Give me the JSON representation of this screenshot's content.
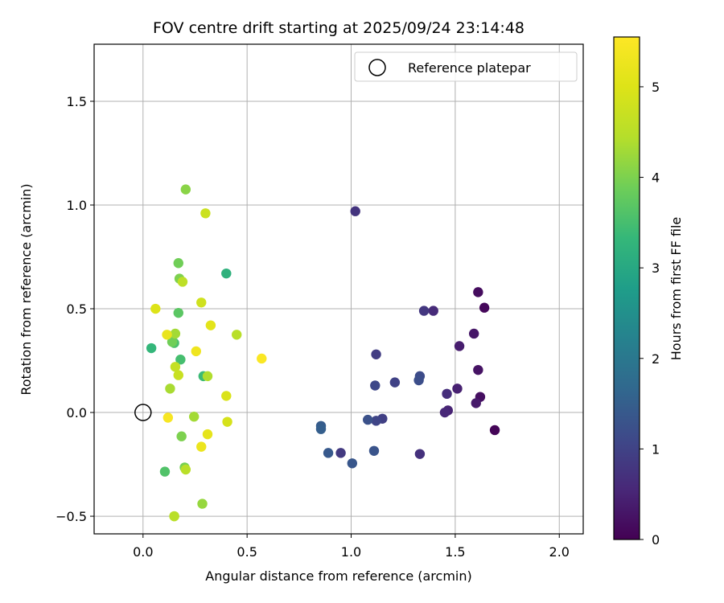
{
  "chart_data": {
    "type": "scatter",
    "title": "FOV centre drift starting at 2025/09/24 23:14:48",
    "xlabel": "Angular distance from reference (arcmin)",
    "ylabel": "Rotation from reference (arcmin)",
    "xlim": [
      -0.235,
      2.115
    ],
    "ylim": [
      -0.585,
      1.775
    ],
    "xticks": [
      0.0,
      0.5,
      1.0,
      1.5,
      2.0
    ],
    "xtick_labels": [
      "0.0",
      "0.5",
      "1.0",
      "1.5",
      "2.0"
    ],
    "yticks": [
      -0.5,
      0.0,
      0.5,
      1.0,
      1.5
    ],
    "ytick_labels": [
      "−0.5",
      "0.0",
      "0.5",
      "1.0",
      "1.5"
    ],
    "grid": true,
    "legend": {
      "position": "top-right",
      "entries": [
        "Reference platepar"
      ]
    },
    "reference_point": {
      "x": 0.0,
      "y": 0.0,
      "label": "Reference platepar"
    },
    "colorbar": {
      "label": "Hours from first FF file",
      "range": [
        0,
        5.55
      ],
      "colormap": "viridis",
      "ticks": [
        0,
        1,
        2,
        3,
        4,
        5
      ],
      "tick_labels": [
        "0",
        "1",
        "2",
        "3",
        "4",
        "5"
      ]
    },
    "points": [
      {
        "x": 1.69,
        "y": -0.085,
        "c": 0.05
      },
      {
        "x": 1.64,
        "y": 0.505,
        "c": 0.1
      },
      {
        "x": 1.61,
        "y": 0.58,
        "c": 0.15
      },
      {
        "x": 1.62,
        "y": 0.075,
        "c": 0.2
      },
      {
        "x": 1.61,
        "y": 0.205,
        "c": 0.25
      },
      {
        "x": 1.59,
        "y": 0.38,
        "c": 0.3
      },
      {
        "x": 1.6,
        "y": 0.045,
        "c": 0.35
      },
      {
        "x": 1.52,
        "y": 0.32,
        "c": 0.4
      },
      {
        "x": 1.51,
        "y": 0.115,
        "c": 0.45
      },
      {
        "x": 1.465,
        "y": 0.01,
        "c": 0.5
      },
      {
        "x": 1.45,
        "y": 0.0,
        "c": 0.55
      },
      {
        "x": 1.395,
        "y": 0.49,
        "c": 0.6
      },
      {
        "x": 1.46,
        "y": 0.09,
        "c": 0.65
      },
      {
        "x": 1.33,
        "y": -0.2,
        "c": 0.7
      },
      {
        "x": 1.02,
        "y": 0.97,
        "c": 0.75
      },
      {
        "x": 1.35,
        "y": 0.49,
        "c": 0.8
      },
      {
        "x": 0.95,
        "y": -0.195,
        "c": 0.85
      },
      {
        "x": 1.12,
        "y": 0.28,
        "c": 0.9
      },
      {
        "x": 1.15,
        "y": -0.03,
        "c": 0.95
      },
      {
        "x": 1.21,
        "y": 0.145,
        "c": 1.0
      },
      {
        "x": 1.12,
        "y": -0.04,
        "c": 1.05
      },
      {
        "x": 1.115,
        "y": 0.13,
        "c": 1.1
      },
      {
        "x": 1.33,
        "y": 0.175,
        "c": 1.15
      },
      {
        "x": 1.325,
        "y": 0.155,
        "c": 1.2
      },
      {
        "x": 1.08,
        "y": -0.035,
        "c": 1.25
      },
      {
        "x": 1.11,
        "y": -0.185,
        "c": 1.3
      },
      {
        "x": 1.005,
        "y": -0.245,
        "c": 1.35
      },
      {
        "x": 0.89,
        "y": -0.195,
        "c": 1.4
      },
      {
        "x": 0.855,
        "y": -0.065,
        "c": 1.45
      },
      {
        "x": 0.855,
        "y": -0.08,
        "c": 1.5
      },
      {
        "x": 0.4,
        "y": 0.67,
        "c": 3.2
      },
      {
        "x": 0.04,
        "y": 0.31,
        "c": 3.3
      },
      {
        "x": 0.29,
        "y": 0.175,
        "c": 3.4
      },
      {
        "x": 0.18,
        "y": 0.255,
        "c": 3.5
      },
      {
        "x": 0.15,
        "y": 0.335,
        "c": 3.55
      },
      {
        "x": 0.105,
        "y": -0.285,
        "c": 3.6
      },
      {
        "x": 0.17,
        "y": 0.48,
        "c": 3.7
      },
      {
        "x": 0.17,
        "y": 0.72,
        "c": 3.9
      },
      {
        "x": 0.14,
        "y": 0.34,
        "c": 3.9
      },
      {
        "x": 0.2,
        "y": -0.265,
        "c": 3.95
      },
      {
        "x": 0.185,
        "y": -0.115,
        "c": 4.0
      },
      {
        "x": 0.175,
        "y": 0.645,
        "c": 4.0
      },
      {
        "x": 0.205,
        "y": 1.075,
        "c": 4.1
      },
      {
        "x": 0.285,
        "y": -0.44,
        "c": 4.2
      },
      {
        "x": 0.245,
        "y": -0.02,
        "c": 4.3
      },
      {
        "x": 0.155,
        "y": 0.38,
        "c": 4.3
      },
      {
        "x": 0.13,
        "y": 0.115,
        "c": 4.35
      },
      {
        "x": 0.31,
        "y": 0.175,
        "c": 4.4
      },
      {
        "x": 0.45,
        "y": 0.375,
        "c": 4.5
      },
      {
        "x": 0.205,
        "y": -0.275,
        "c": 4.5
      },
      {
        "x": 0.19,
        "y": 0.63,
        "c": 4.55
      },
      {
        "x": 0.15,
        "y": -0.5,
        "c": 4.6
      },
      {
        "x": 0.155,
        "y": 0.22,
        "c": 4.65
      },
      {
        "x": 0.17,
        "y": 0.18,
        "c": 4.7
      },
      {
        "x": 0.3,
        "y": 0.96,
        "c": 4.75
      },
      {
        "x": 0.28,
        "y": 0.53,
        "c": 4.8
      },
      {
        "x": 0.405,
        "y": -0.045,
        "c": 4.9
      },
      {
        "x": 0.4,
        "y": 0.08,
        "c": 4.95
      },
      {
        "x": 0.06,
        "y": 0.5,
        "c": 5.0
      },
      {
        "x": 0.325,
        "y": 0.42,
        "c": 5.1
      },
      {
        "x": 0.31,
        "y": -0.105,
        "c": 5.15
      },
      {
        "x": 0.115,
        "y": 0.375,
        "c": 5.2
      },
      {
        "x": 0.28,
        "y": -0.165,
        "c": 5.25
      },
      {
        "x": 0.255,
        "y": 0.295,
        "c": 5.3
      },
      {
        "x": 0.12,
        "y": -0.025,
        "c": 5.45
      },
      {
        "x": 0.57,
        "y": 0.26,
        "c": 5.5
      },
      {
        "x": 0.15,
        "y": -0.5,
        "c": 4.5
      }
    ]
  }
}
